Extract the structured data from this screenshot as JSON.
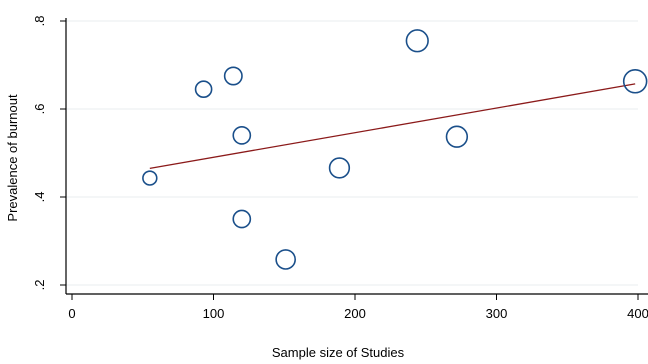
{
  "chart_data": {
    "type": "scatter",
    "xlabel": "Sample size of Studies",
    "ylabel": "Prevalence of burnout",
    "xlim": [
      0,
      400
    ],
    "ylim": [
      0.2,
      0.8
    ],
    "xticks": [
      0,
      100,
      200,
      300,
      400
    ],
    "yticks": [
      0.2,
      0.4,
      0.6,
      0.8
    ],
    "xtick_labels": [
      "0",
      "100",
      "200",
      "300",
      "400"
    ],
    "ytick_labels": [
      ".2",
      ".4",
      ".6",
      ".8"
    ],
    "grid": "horizontal",
    "points": [
      {
        "x": 55,
        "y": 0.443,
        "weight": 0.45
      },
      {
        "x": 93,
        "y": 0.645,
        "weight": 0.62
      },
      {
        "x": 114,
        "y": 0.675,
        "weight": 0.72
      },
      {
        "x": 120,
        "y": 0.54,
        "weight": 0.7
      },
      {
        "x": 120,
        "y": 0.35,
        "weight": 0.7
      },
      {
        "x": 151,
        "y": 0.258,
        "weight": 0.85
      },
      {
        "x": 189,
        "y": 0.466,
        "weight": 0.9
      },
      {
        "x": 244,
        "y": 0.755,
        "weight": 1.05
      },
      {
        "x": 272,
        "y": 0.537,
        "weight": 0.98
      },
      {
        "x": 398,
        "y": 0.663,
        "weight": 1.15
      }
    ],
    "fit_line": {
      "x": [
        55,
        398
      ],
      "y": [
        0.465,
        0.657
      ]
    },
    "colors": {
      "marker": "#1a4f8a",
      "fit": "#8b1a1a",
      "grid": "#e8ecef",
      "axis": "#000000"
    }
  }
}
